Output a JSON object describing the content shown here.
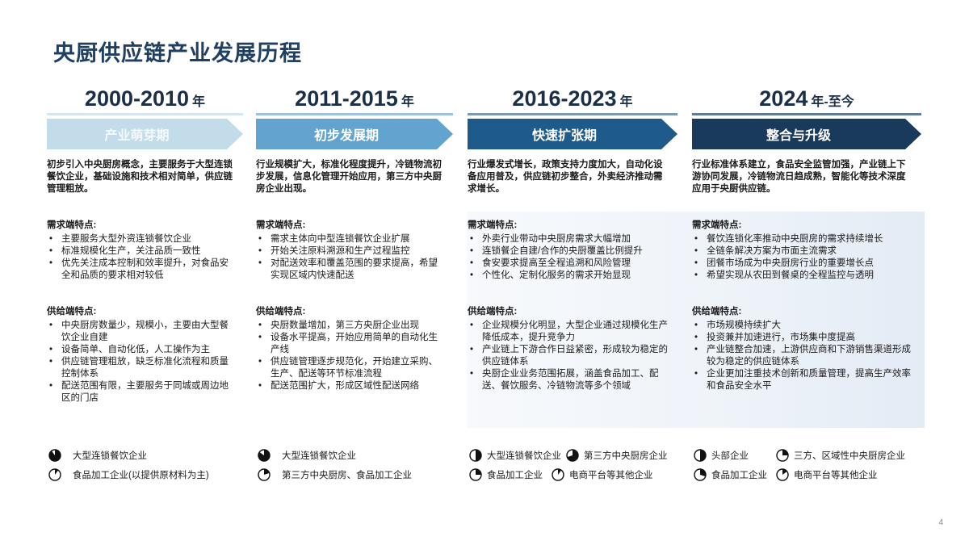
{
  "title": "央厨供应链产业发展历程",
  "page_number": "4",
  "colors": {
    "title": "#1f3f63",
    "stage1": "#c3dcea",
    "stage2": "#62a3cf",
    "stage3": "#1f5b8a",
    "stage4": "#1a3a5c"
  },
  "periods": [
    {
      "years": "2000-2010",
      "suffix": "年",
      "stage": "产业萌芽期",
      "summary": "初步引入中央厨房概念，主要服务于大型连锁餐饮企业，基础设施和技术相对简单，供应链管理粗放。",
      "demand_title": "需求端特点:",
      "demand": [
        "主要服务大型外资连锁餐饮企业",
        "标准规模化生产，关注品质一致性",
        "优先关注成本控制和效率提升，对食品安全和品质的要求相对较低"
      ],
      "supply_title": "供给端特点:",
      "supply": [
        "中央厨房数量少，规模小，主要由大型餐饮企业自建",
        "设备简单、自动化低，人工操作为主",
        "供应链管理粗放，缺乏标准化流程和质量控制体系",
        "配送范围有限，主要服务于同城或周边地区的门店"
      ],
      "legend": [
        [
          {
            "label": "大型连锁餐饮企业",
            "share": 0.9
          }
        ],
        [
          {
            "label": "食品加工企业(以提供原材料为主)",
            "share": 0.1
          }
        ]
      ]
    },
    {
      "years": "2011-2015",
      "suffix": "年",
      "stage": "初步发展期",
      "summary": "行业规模扩大，标准化程度提升，冷链物流初步发展，信息化管理开始应用，第三方中央厨房企业出现。",
      "demand_title": "需求端特点:",
      "demand": [
        "需求主体向中型连锁餐饮企业扩展",
        "开始关注原料溯源和生产过程监控",
        "对配送效率和覆盖范围的要求提高，希望实现区域内快速配送"
      ],
      "supply_title": "供给端特点:",
      "supply": [
        "央厨数量增加，第三方央厨企业出现",
        "设备水平提高，开始应用简单的自动化生产线",
        "供应链管理逐步规范化，开始建立采购、生产、配送等环节标准流程",
        "配送范围扩大，形成区域性配送网络"
      ],
      "legend": [
        [
          {
            "label": "大型连锁餐饮企业",
            "share": 0.85
          }
        ],
        [
          {
            "label": "第三方中央厨房、食品加工企业",
            "share": 0.2
          }
        ]
      ]
    },
    {
      "years": "2016-2023",
      "suffix": "年",
      "stage": "快速扩张期",
      "summary": "行业爆发式增长，政策支持力度加大，自动化设备应用普及，供应链初步整合，外卖经济推动需求增长。",
      "demand_title": "需求端特点:",
      "demand": [
        "外卖行业带动中央厨房需求大幅增加",
        "连锁餐企自建/合作的央厨覆盖比例提升",
        "食安要求提高至全程追溯和风险管理",
        "个性化、定制化服务的需求开始显现"
      ],
      "supply_title": "供给端特点:",
      "supply": [
        "企业规模分化明显，大型企业通过规模化生产降低成本，提升竞争力",
        "产业链上下游合作日益紧密，形成较为稳定的供应链体系",
        "央厨企业业务范围拓展，涵盖食品加工、配送、餐饮服务、冷链物流等多个领域"
      ],
      "legend": [
        [
          {
            "label": "大型连锁餐饮企业",
            "share": 0.5
          },
          {
            "label": "第三方中央厨房企业",
            "share": 0.7
          }
        ],
        [
          {
            "label": "食品加工企业",
            "share": 0.25
          },
          {
            "label": "电商平台等其他企业",
            "share": 0.1
          }
        ]
      ]
    },
    {
      "years": "2024",
      "suffix": "年-至今",
      "stage": "整合与升级",
      "summary": "行业标准体系建立，食品安全监管加强，产业链上下游协同发展，冷链物流日趋成熟，智能化等技术深度应用于央厨供应链。",
      "demand_title": "需求端特点:",
      "demand": [
        "餐饮连锁化率推动中央厨房的需求持续增长",
        "全链条解决方案为市面主流需求",
        "团餐市场成为中央厨房行业的重要增长点",
        "希望实现从农田到餐桌的全程监控与透明"
      ],
      "supply_title": "供给端特点:",
      "supply": [
        "市场规模持续扩大",
        "投资兼并加速进行，市场集中度提高",
        "产业链整合加速，上游供应商和下游销售渠道形成较为稳定的供应链体系",
        "企业更加注重技术创新和质量管理，提高生产效率和食品安全水平"
      ],
      "legend": [
        [
          {
            "label": "头部企业",
            "share": 0.5
          },
          {
            "label": "三方、区域性中央厨房企业",
            "share": 0.25
          }
        ],
        [
          {
            "label": "食品加工企业",
            "share": 0.3
          },
          {
            "label": "电商平台等其他企业",
            "share": 0.15
          }
        ]
      ]
    }
  ]
}
